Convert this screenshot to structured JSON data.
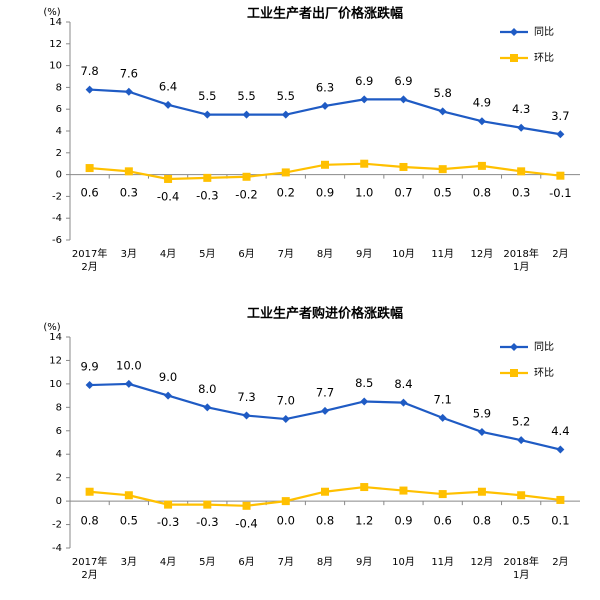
{
  "chart_data": [
    {
      "type": "line",
      "title": "工业生产者出厂价格涨跌幅",
      "y_label": "(%)",
      "categories": [
        "2017年\n2月",
        "3月",
        "4月",
        "5月",
        "6月",
        "7月",
        "8月",
        "9月",
        "10月",
        "11月",
        "12月",
        "2018年\n1月",
        "2月"
      ],
      "series": [
        {
          "name": "同比",
          "color": "#1f5bc4",
          "marker": "diamond",
          "values": [
            7.8,
            7.6,
            6.4,
            5.5,
            5.5,
            5.5,
            6.3,
            6.9,
            6.9,
            5.8,
            4.9,
            4.3,
            3.7
          ],
          "value_labels": [
            "7.8",
            "7.6",
            "6.4",
            "5.5",
            "5.5",
            "5.5",
            "6.3",
            "6.9",
            "6.9",
            "5.8",
            "4.9",
            "4.3",
            "3.7"
          ]
        },
        {
          "name": "环比",
          "color": "#ffc000",
          "marker": "square",
          "values": [
            0.6,
            0.3,
            -0.4,
            -0.3,
            -0.2,
            0.2,
            0.9,
            1.0,
            0.7,
            0.5,
            0.8,
            0.3,
            -0.1
          ],
          "value_labels": [
            "0.6",
            "0.3",
            "-0.4",
            "-0.3",
            "-0.2",
            "0.2",
            "0.9",
            "1.0",
            "0.7",
            "0.5",
            "0.8",
            "0.3",
            "-0.1"
          ]
        }
      ],
      "ylim": [
        -6,
        14
      ],
      "yticks": [
        -6,
        -4,
        -2,
        0,
        2,
        4,
        6,
        8,
        10,
        12,
        14
      ],
      "legend": "upper right"
    },
    {
      "type": "line",
      "title": "工业生产者购进价格涨跌幅",
      "y_label": "(%)",
      "categories": [
        "2017年\n2月",
        "3月",
        "4月",
        "5月",
        "6月",
        "7月",
        "8月",
        "9月",
        "10月",
        "11月",
        "12月",
        "2018年\n1月",
        "2月"
      ],
      "series": [
        {
          "name": "同比",
          "color": "#1f5bc4",
          "marker": "diamond",
          "values": [
            9.9,
            10.0,
            9.0,
            8.0,
            7.3,
            7.0,
            7.7,
            8.5,
            8.4,
            7.1,
            5.9,
            5.2,
            4.4
          ],
          "value_labels": [
            "9.9",
            "10.0",
            "9.0",
            "8.0",
            "7.3",
            "7.0",
            "7.7",
            "8.5",
            "8.4",
            "7.1",
            "5.9",
            "5.2",
            "4.4"
          ]
        },
        {
          "name": "环比",
          "color": "#ffc000",
          "marker": "square",
          "values": [
            0.8,
            0.5,
            -0.3,
            -0.3,
            -0.4,
            0.0,
            0.8,
            1.2,
            0.9,
            0.6,
            0.8,
            0.5,
            0.1
          ],
          "value_labels": [
            "0.8",
            "0.5",
            "-0.3",
            "-0.3",
            "-0.4",
            "0.0",
            "0.8",
            "1.2",
            "0.9",
            "0.6",
            "0.8",
            "0.5",
            "0.1"
          ]
        }
      ],
      "ylim": [
        -4,
        14
      ],
      "yticks": [
        -4,
        -2,
        0,
        2,
        4,
        6,
        8,
        10,
        12,
        14
      ],
      "legend": "upper right"
    }
  ]
}
